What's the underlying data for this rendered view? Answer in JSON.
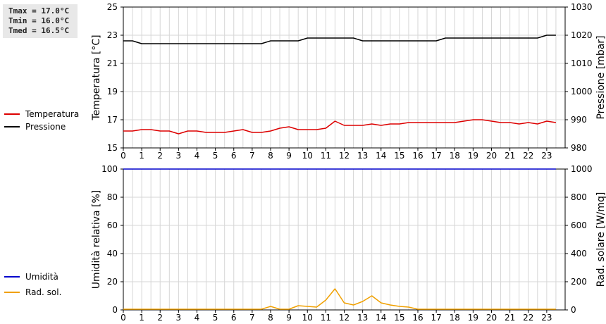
{
  "stats": {
    "tmax": "Tmax = 17.0°C",
    "tmin": "Tmin = 16.0°C",
    "tmed": "Tmed = 16.5°C"
  },
  "legend_top": [
    {
      "label": "Temperatura",
      "color": "#dd0000"
    },
    {
      "label": "Pressione",
      "color": "#000000"
    }
  ],
  "legend_bottom": [
    {
      "label": "Umidità",
      "color": "#0000cc"
    },
    {
      "label": "Rad. sol.",
      "color": "#f0a000"
    }
  ],
  "chart_data": [
    {
      "type": "line",
      "x": [
        0,
        0.5,
        1,
        1.5,
        2,
        2.5,
        3,
        3.5,
        4,
        4.5,
        5,
        5.5,
        6,
        6.5,
        7,
        7.5,
        8,
        8.5,
        9,
        9.5,
        10,
        10.5,
        11,
        11.5,
        12,
        12.5,
        13,
        13.5,
        14,
        14.5,
        15,
        15.5,
        16,
        16.5,
        17,
        17.5,
        18,
        18.5,
        19,
        19.5,
        20,
        20.5,
        21,
        21.5,
        22,
        22.5,
        23,
        23.5
      ],
      "xlim": [
        0,
        24
      ],
      "xticks": [
        "0",
        "1",
        "2",
        "3",
        "4",
        "5",
        "6",
        "7",
        "8",
        "9",
        "10",
        "11",
        "12",
        "13",
        "14",
        "15",
        "16",
        "17",
        "18",
        "19",
        "20",
        "21",
        "22",
        "23"
      ],
      "ylabel": "Temperatura [°C]",
      "ylim": [
        15,
        25
      ],
      "yticks": [
        "15",
        "17",
        "19",
        "21",
        "23",
        "25"
      ],
      "y2label": "Pressione [mbar]",
      "y2lim": [
        980,
        1030
      ],
      "y2ticks": [
        "980",
        "990",
        "1000",
        "1010",
        "1020",
        "1030"
      ],
      "grid": true,
      "series": [
        {
          "name": "Temperatura",
          "axis": "left",
          "color": "#dd0000",
          "values": [
            16.2,
            16.2,
            16.3,
            16.3,
            16.2,
            16.2,
            16.0,
            16.2,
            16.2,
            16.1,
            16.1,
            16.1,
            16.2,
            16.3,
            16.1,
            16.1,
            16.2,
            16.4,
            16.5,
            16.3,
            16.3,
            16.3,
            16.4,
            16.9,
            16.6,
            16.6,
            16.6,
            16.7,
            16.6,
            16.7,
            16.7,
            16.8,
            16.8,
            16.8,
            16.8,
            16.8,
            16.8,
            16.9,
            17.0,
            17.0,
            16.9,
            16.8,
            16.8,
            16.7,
            16.8,
            16.7,
            16.9,
            16.8
          ]
        },
        {
          "name": "Pressione",
          "axis": "right",
          "color": "#000000",
          "values": [
            1018,
            1018,
            1017,
            1017,
            1017,
            1017,
            1017,
            1017,
            1017,
            1017,
            1017,
            1017,
            1017,
            1017,
            1017,
            1017,
            1018,
            1018,
            1018,
            1018,
            1019,
            1019,
            1019,
            1019,
            1019,
            1019,
            1018,
            1018,
            1018,
            1018,
            1018,
            1018,
            1018,
            1018,
            1018,
            1019,
            1019,
            1019,
            1019,
            1019,
            1019,
            1019,
            1019,
            1019,
            1019,
            1019,
            1020,
            1020
          ]
        }
      ]
    },
    {
      "type": "line",
      "x": [
        0,
        0.5,
        1,
        1.5,
        2,
        2.5,
        3,
        3.5,
        4,
        4.5,
        5,
        5.5,
        6,
        6.5,
        7,
        7.5,
        8,
        8.5,
        9,
        9.5,
        10,
        10.5,
        11,
        11.5,
        12,
        12.5,
        13,
        13.5,
        14,
        14.5,
        15,
        15.5,
        16,
        16.5,
        17,
        17.5,
        18,
        18.5,
        19,
        19.5,
        20,
        20.5,
        21,
        21.5,
        22,
        22.5,
        23,
        23.5
      ],
      "xlim": [
        0,
        24
      ],
      "xticks": [
        "0",
        "1",
        "2",
        "3",
        "4",
        "5",
        "6",
        "7",
        "8",
        "9",
        "10",
        "11",
        "12",
        "13",
        "14",
        "15",
        "16",
        "17",
        "18",
        "19",
        "20",
        "21",
        "22",
        "23"
      ],
      "ylabel": "Umidità relativa [%]",
      "ylim": [
        0,
        100
      ],
      "yticks": [
        "0",
        "20",
        "40",
        "60",
        "80",
        "100"
      ],
      "y2label": "Rad. solare [W/mq]",
      "y2lim": [
        0,
        1000
      ],
      "y2ticks": [
        "0",
        "200",
        "400",
        "600",
        "800",
        "1000"
      ],
      "grid": true,
      "series": [
        {
          "name": "Umidità",
          "axis": "left",
          "color": "#0000cc",
          "values": [
            100,
            100,
            100,
            100,
            100,
            100,
            100,
            100,
            100,
            100,
            100,
            100,
            100,
            100,
            100,
            100,
            100,
            100,
            100,
            100,
            100,
            100,
            100,
            100,
            100,
            100,
            100,
            100,
            100,
            100,
            100,
            100,
            100,
            100,
            100,
            100,
            100,
            100,
            100,
            100,
            100,
            100,
            100,
            100,
            100,
            100,
            100,
            100
          ]
        },
        {
          "name": "Rad. sol.",
          "axis": "right",
          "color": "#f0a000",
          "values": [
            5,
            5,
            5,
            5,
            5,
            5,
            5,
            5,
            5,
            5,
            5,
            5,
            5,
            5,
            5,
            5,
            25,
            5,
            5,
            30,
            25,
            20,
            70,
            150,
            50,
            35,
            60,
            100,
            50,
            35,
            25,
            20,
            5,
            5,
            5,
            5,
            5,
            5,
            5,
            5,
            5,
            5,
            5,
            5,
            5,
            5,
            5,
            5
          ]
        }
      ]
    }
  ]
}
